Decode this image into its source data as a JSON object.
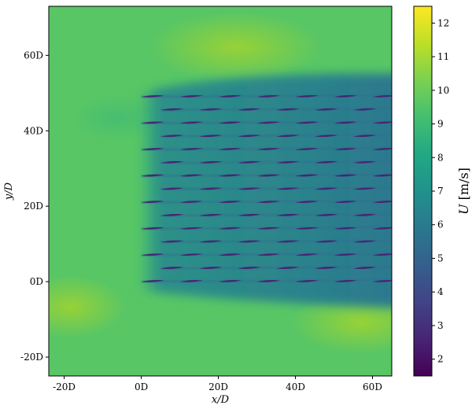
{
  "chart_data": {
    "type": "heatmap",
    "title": "",
    "xlabel": "x/D",
    "ylabel": "y/D",
    "xlim": [
      -24,
      65
    ],
    "ylim": [
      -25,
      73
    ],
    "x_ticks": [
      {
        "value": -20,
        "label": "-20D"
      },
      {
        "value": 0,
        "label": "0D"
      },
      {
        "value": 20,
        "label": "20D"
      },
      {
        "value": 40,
        "label": "40D"
      },
      {
        "value": 60,
        "label": "60D"
      }
    ],
    "y_ticks": [
      {
        "value": -20,
        "label": "-20D"
      },
      {
        "value": 0,
        "label": "0D"
      },
      {
        "value": 20,
        "label": "20D"
      },
      {
        "value": 40,
        "label": "40D"
      },
      {
        "value": 60,
        "label": "60D"
      }
    ],
    "colorbar": {
      "label_var": "U",
      "label_unit": " [m/s]",
      "colormap": "viridis",
      "vmin": 1.5,
      "vmax": 12.5,
      "ticks": [
        2,
        3,
        4,
        5,
        6,
        7,
        8,
        9,
        10,
        11,
        12
      ]
    },
    "freestream_speed": 9.6,
    "wind_farm": {
      "rows": 15,
      "row_spacing_D": 3.5,
      "first_row_y_D": 0,
      "columns_per_row": 7,
      "turbine_spacing_x_D": 10,
      "odd_row_x_offset_D": 5,
      "wake_speed_min": 2.5
    },
    "wake_region_edge_speed": 6.5
  }
}
